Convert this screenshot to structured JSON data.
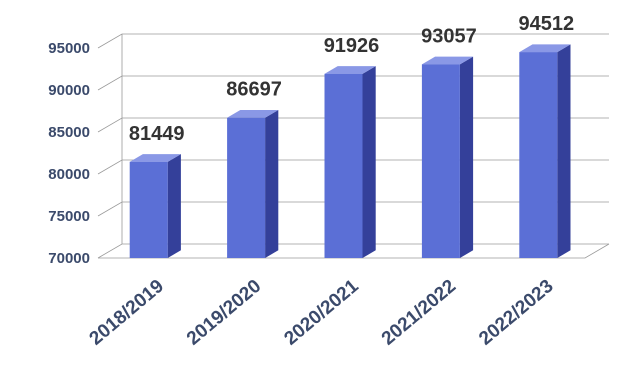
{
  "chart_data": {
    "type": "bar",
    "categories": [
      "2018/2019",
      "2019/2020",
      "2020/2021",
      "2021/2022",
      "2022/2023"
    ],
    "values": [
      81449,
      86697,
      91926,
      93057,
      94512
    ],
    "title": "",
    "xlabel": "",
    "ylabel": "",
    "ylim": [
      70000,
      95000
    ],
    "yticks": [
      70000,
      75000,
      80000,
      85000,
      90000,
      95000
    ],
    "grid": true,
    "legend": "none",
    "style": "3d-column",
    "colors": {
      "bar_front": "#5b6fd6",
      "bar_top": "#8a98e6",
      "bar_side": "#34409a",
      "text": "#3b4a6b"
    }
  }
}
